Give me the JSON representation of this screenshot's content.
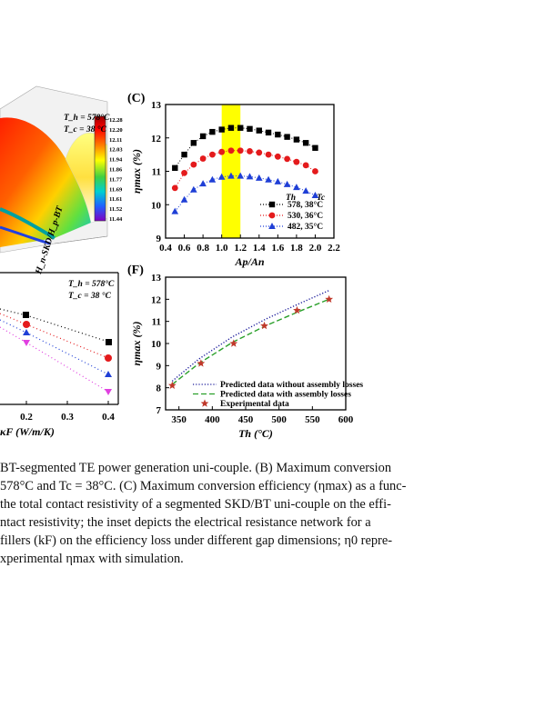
{
  "panels": {
    "left_top": {
      "inset_th": "T_h = 578°C",
      "inset_tc": "T_c = 38 °C",
      "axis_label": "H_n-SKD/H_p-BT",
      "colorbar_ticks": [
        "12.28",
        "12.20",
        "12.11",
        "12.03",
        "11.94",
        "11.86",
        "11.77",
        "11.69",
        "11.61",
        "11.52",
        "11.44"
      ]
    },
    "left_bottom": {
      "inset_th": "T_h = 578°C",
      "inset_tc": "T_c = 38 °C",
      "x_ticks": [
        "0.2",
        "0.3",
        "0.4"
      ],
      "x_label": "κF (W/m/K)"
    }
  },
  "chart_data": [
    {
      "id": "C",
      "label": "(C)",
      "type": "line",
      "xlabel": "Ap/An",
      "ylabel": "ηmax (%)",
      "xlim": [
        0.4,
        2.2
      ],
      "ylim": [
        9,
        13
      ],
      "x_ticks": [
        0.4,
        0.6,
        0.8,
        1.0,
        1.2,
        1.4,
        1.6,
        1.8,
        2.0,
        2.2
      ],
      "y_ticks": [
        9,
        10,
        11,
        12,
        13
      ],
      "highlight_band": [
        1.0,
        1.2
      ],
      "highlight_color": "#ffff00",
      "legend_header": [
        "Th",
        "Tc"
      ],
      "legend_position": "bottom-right",
      "x": [
        0.5,
        0.6,
        0.7,
        0.8,
        0.9,
        1.0,
        1.1,
        1.2,
        1.3,
        1.4,
        1.5,
        1.6,
        1.7,
        1.8,
        1.9,
        2.0
      ],
      "series": [
        {
          "name": "578, 38°C",
          "color": "#000000",
          "marker": "square",
          "values": [
            11.1,
            11.5,
            11.85,
            12.05,
            12.18,
            12.25,
            12.3,
            12.3,
            12.27,
            12.22,
            12.16,
            12.1,
            12.03,
            11.95,
            11.85,
            11.7
          ]
        },
        {
          "name": "530, 36°C",
          "color": "#e41a1c",
          "marker": "circle",
          "values": [
            10.5,
            10.95,
            11.2,
            11.38,
            11.5,
            11.58,
            11.62,
            11.62,
            11.6,
            11.56,
            11.5,
            11.44,
            11.37,
            11.28,
            11.18,
            11.0
          ]
        },
        {
          "name": "482, 35°C",
          "color": "#1f3fd6",
          "marker": "triangle",
          "values": [
            9.8,
            10.15,
            10.45,
            10.63,
            10.75,
            10.83,
            10.86,
            10.86,
            10.84,
            10.8,
            10.75,
            10.69,
            10.61,
            10.52,
            10.41,
            10.28
          ]
        }
      ]
    },
    {
      "id": "F",
      "label": "(F)",
      "type": "line",
      "xlabel": "Th (°C)",
      "ylabel": "ηmax (%)",
      "xlim": [
        330,
        600
      ],
      "ylim": [
        7,
        13
      ],
      "x_ticks": [
        350,
        400,
        450,
        500,
        550,
        600
      ],
      "y_ticks": [
        7,
        8,
        9,
        10,
        11,
        12,
        13
      ],
      "legend_position": "bottom-right",
      "series": [
        {
          "name": "Predicted data without assembly losses",
          "color": "#1a1a9a",
          "style": "dotted",
          "x": [
            340,
            380,
            430,
            480,
            530,
            575
          ],
          "values": [
            8.3,
            9.3,
            10.3,
            11.1,
            11.8,
            12.4
          ]
        },
        {
          "name": "Predicted data with assembly losses",
          "color": "#2aa02a",
          "style": "dashed",
          "x": [
            340,
            380,
            430,
            480,
            530,
            575
          ],
          "values": [
            8.15,
            9.1,
            10.05,
            10.8,
            11.45,
            12.0
          ]
        },
        {
          "name": "Experimental data",
          "color": "#c0392b",
          "marker": "star",
          "x": [
            340,
            383,
            432,
            478,
            527,
            575
          ],
          "values": [
            8.1,
            9.1,
            10.0,
            10.8,
            11.5,
            12.0
          ]
        }
      ]
    }
  ],
  "caption": {
    "lines": [
      "BT-segmented TE power generation uni-couple. (B) Maximum conversion",
      "578°C and Tc = 38°C. (C) Maximum conversion efficiency (ηmax) as a func-",
      "the total contact resistivity of a segmented SKD/BT uni-couple on the effi-",
      "ntact resistivity; the inset depicts the electrical resistance network for a",
      "fillers (kF) on the efficiency loss under different gap dimensions; η0 repre-",
      "xperimental ηmax with simulation."
    ]
  }
}
